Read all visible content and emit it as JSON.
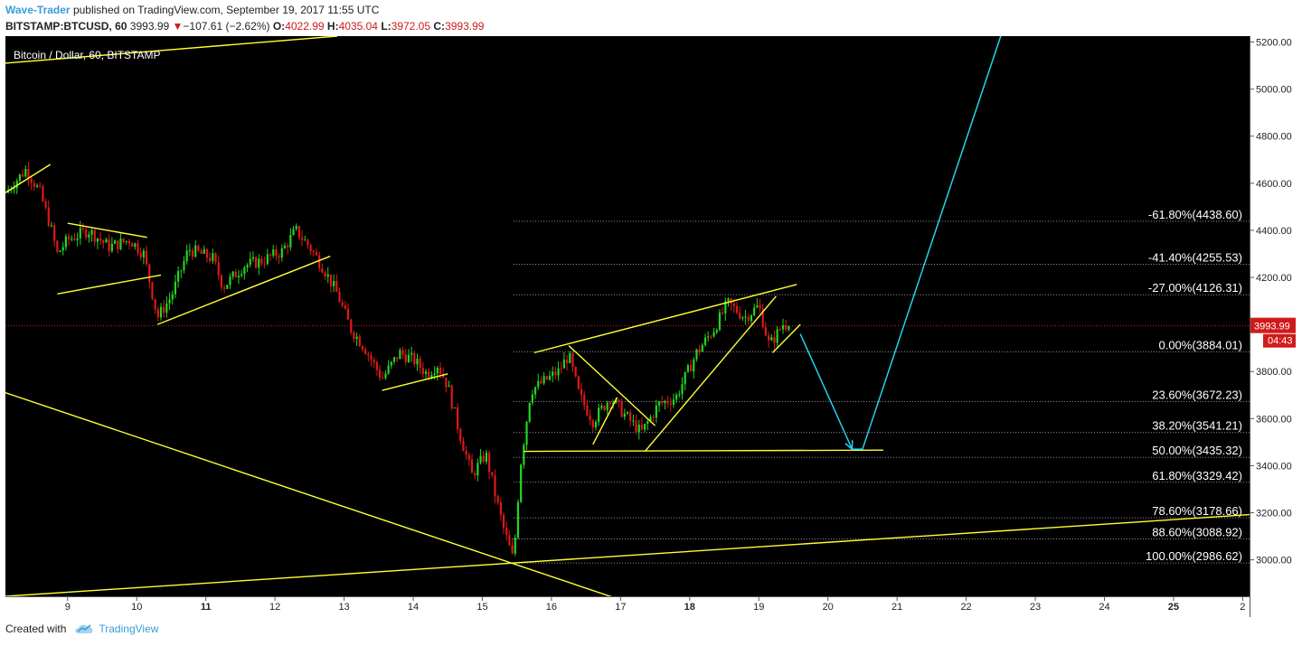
{
  "header": {
    "author": "Wave-Trader",
    "published_text": "published on TradingView.com, September 19, 2017 11:55 UTC",
    "symbol": "BITSTAMP:BTCUSD, 60",
    "price": "3993.99",
    "change_arrow": "▼",
    "change": "−107.61 (−2.62%)",
    "open_label": "O:",
    "open": "4022.99",
    "high_label": "H:",
    "high": "4035.04",
    "low_label": "L:",
    "low": "3972.05",
    "close_label": "C:",
    "close": "3993.99"
  },
  "footer": {
    "created_with": "Created with",
    "brand": "TradingView"
  },
  "colors": {
    "background": "#000000",
    "up": "#22d622",
    "down": "#e01818",
    "trendline": "#ffff33",
    "projection": "#21d4f0",
    "price_line": "#d01a1a"
  },
  "chart_data": {
    "type": "candlestick",
    "title": "Bitcoin / Dollar, 60, BITSTAMP",
    "x_ticks": [
      "9",
      "10",
      "11",
      "12",
      "13",
      "14",
      "15",
      "16",
      "17",
      "18",
      "19",
      "20",
      "21",
      "22",
      "23",
      "24",
      "25",
      "2"
    ],
    "bold_x_ticks": [
      "11",
      "18",
      "25"
    ],
    "y_ticks": [
      "3000.00",
      "3200.00",
      "3400.00",
      "3600.00",
      "3800.00",
      "4000.00",
      "4200.00",
      "4400.00",
      "4600.00",
      "4800.00",
      "5000.00",
      "5200.00"
    ],
    "ylim": [
      2845,
      5225
    ],
    "x_range_days": [
      8.1,
      26.1
    ],
    "current_price": {
      "value": 3993.99,
      "label": "3993.99",
      "countdown": "04:43"
    },
    "fib_levels": [
      {
        "label": "-61.80%(4438.60)",
        "value": 4438.6
      },
      {
        "label": "-41.40%(4255.53)",
        "value": 4255.53
      },
      {
        "label": "-27.00%(4126.31)",
        "value": 4126.31
      },
      {
        "label": "0.00%(3884.01)",
        "value": 3884.01
      },
      {
        "label": "23.60%(3672.23)",
        "value": 3672.23
      },
      {
        "label": "38.20%(3541.21)",
        "value": 3541.21
      },
      {
        "label": "50.00%(3435.32)",
        "value": 3435.32
      },
      {
        "label": "61.80%(3329.42)",
        "value": 3329.42
      },
      {
        "label": "78.60%(3178.66)",
        "value": 3178.66
      },
      {
        "label": "88.60%(3088.92)",
        "value": 3088.92
      },
      {
        "label": "100.00%(2986.62)",
        "value": 2986.62
      }
    ],
    "fib_start_day": 15.45,
    "price_path": [
      [
        8.1,
        4560
      ],
      [
        8.4,
        4660
      ],
      [
        8.6,
        4560
      ],
      [
        8.75,
        4420
      ],
      [
        8.85,
        4300
      ],
      [
        9.0,
        4360
      ],
      [
        9.3,
        4400
      ],
      [
        9.6,
        4330
      ],
      [
        9.9,
        4360
      ],
      [
        10.1,
        4300
      ],
      [
        10.3,
        4030
      ],
      [
        10.5,
        4120
      ],
      [
        10.75,
        4320
      ],
      [
        11.1,
        4280
      ],
      [
        11.25,
        4160
      ],
      [
        11.55,
        4250
      ],
      [
        11.8,
        4270
      ],
      [
        12.1,
        4310
      ],
      [
        12.3,
        4400
      ],
      [
        12.5,
        4330
      ],
      [
        12.7,
        4240
      ],
      [
        12.9,
        4130
      ],
      [
        13.1,
        3980
      ],
      [
        13.3,
        3900
      ],
      [
        13.55,
        3770
      ],
      [
        13.8,
        3880
      ],
      [
        14.0,
        3850
      ],
      [
        14.2,
        3790
      ],
      [
        14.35,
        3830
      ],
      [
        14.5,
        3740
      ],
      [
        14.65,
        3560
      ],
      [
        14.85,
        3360
      ],
      [
        15.05,
        3450
      ],
      [
        15.2,
        3260
      ],
      [
        15.3,
        3140
      ],
      [
        15.45,
        2995
      ],
      [
        15.55,
        3400
      ],
      [
        15.7,
        3720
      ],
      [
        15.9,
        3760
      ],
      [
        16.1,
        3800
      ],
      [
        16.25,
        3870
      ],
      [
        16.4,
        3700
      ],
      [
        16.6,
        3590
      ],
      [
        16.85,
        3690
      ],
      [
        17.05,
        3620
      ],
      [
        17.3,
        3540
      ],
      [
        17.55,
        3660
      ],
      [
        17.8,
        3690
      ],
      [
        18.1,
        3880
      ],
      [
        18.35,
        3980
      ],
      [
        18.55,
        4090
      ],
      [
        18.8,
        4030
      ],
      [
        19.0,
        4080
      ],
      [
        19.15,
        3910
      ],
      [
        19.35,
        4000
      ],
      [
        19.45,
        3995
      ]
    ],
    "trendlines": [
      {
        "from": [
          8.1,
          5110
        ],
        "to": [
          12.9,
          5225
        ]
      },
      {
        "from": [
          8.1,
          4560
        ],
        "to": [
          8.75,
          4680
        ]
      },
      {
        "from": [
          9.0,
          4430
        ],
        "to": [
          10.15,
          4370
        ]
      },
      {
        "from": [
          8.85,
          4130
        ],
        "to": [
          10.35,
          4210
        ]
      },
      {
        "from": [
          10.3,
          4000
        ],
        "to": [
          12.8,
          4290
        ]
      },
      {
        "from": [
          13.55,
          3720
        ],
        "to": [
          14.5,
          3790
        ]
      },
      {
        "from": [
          15.6,
          3461
        ],
        "to": [
          20.8,
          3466
        ]
      },
      {
        "from": [
          15.75,
          3880
        ],
        "to": [
          19.55,
          4170
        ]
      },
      {
        "from": [
          16.25,
          3910
        ],
        "to": [
          17.5,
          3570
        ]
      },
      {
        "from": [
          16.6,
          3490
        ],
        "to": [
          16.95,
          3690
        ]
      },
      {
        "from": [
          17.35,
          3460
        ],
        "to": [
          19.25,
          4120
        ]
      },
      {
        "from": [
          19.2,
          3880
        ],
        "to": [
          19.6,
          4000
        ]
      },
      {
        "from": [
          8.1,
          3710
        ],
        "to": [
          16.9,
          2840
        ]
      },
      {
        "from": [
          8.1,
          2845
        ],
        "to": [
          26.1,
          3192
        ]
      }
    ],
    "projection": [
      [
        19.6,
        3960
      ],
      [
        20.35,
        3470
      ],
      [
        20.5,
        3470
      ],
      [
        22.5,
        5225
      ]
    ]
  }
}
